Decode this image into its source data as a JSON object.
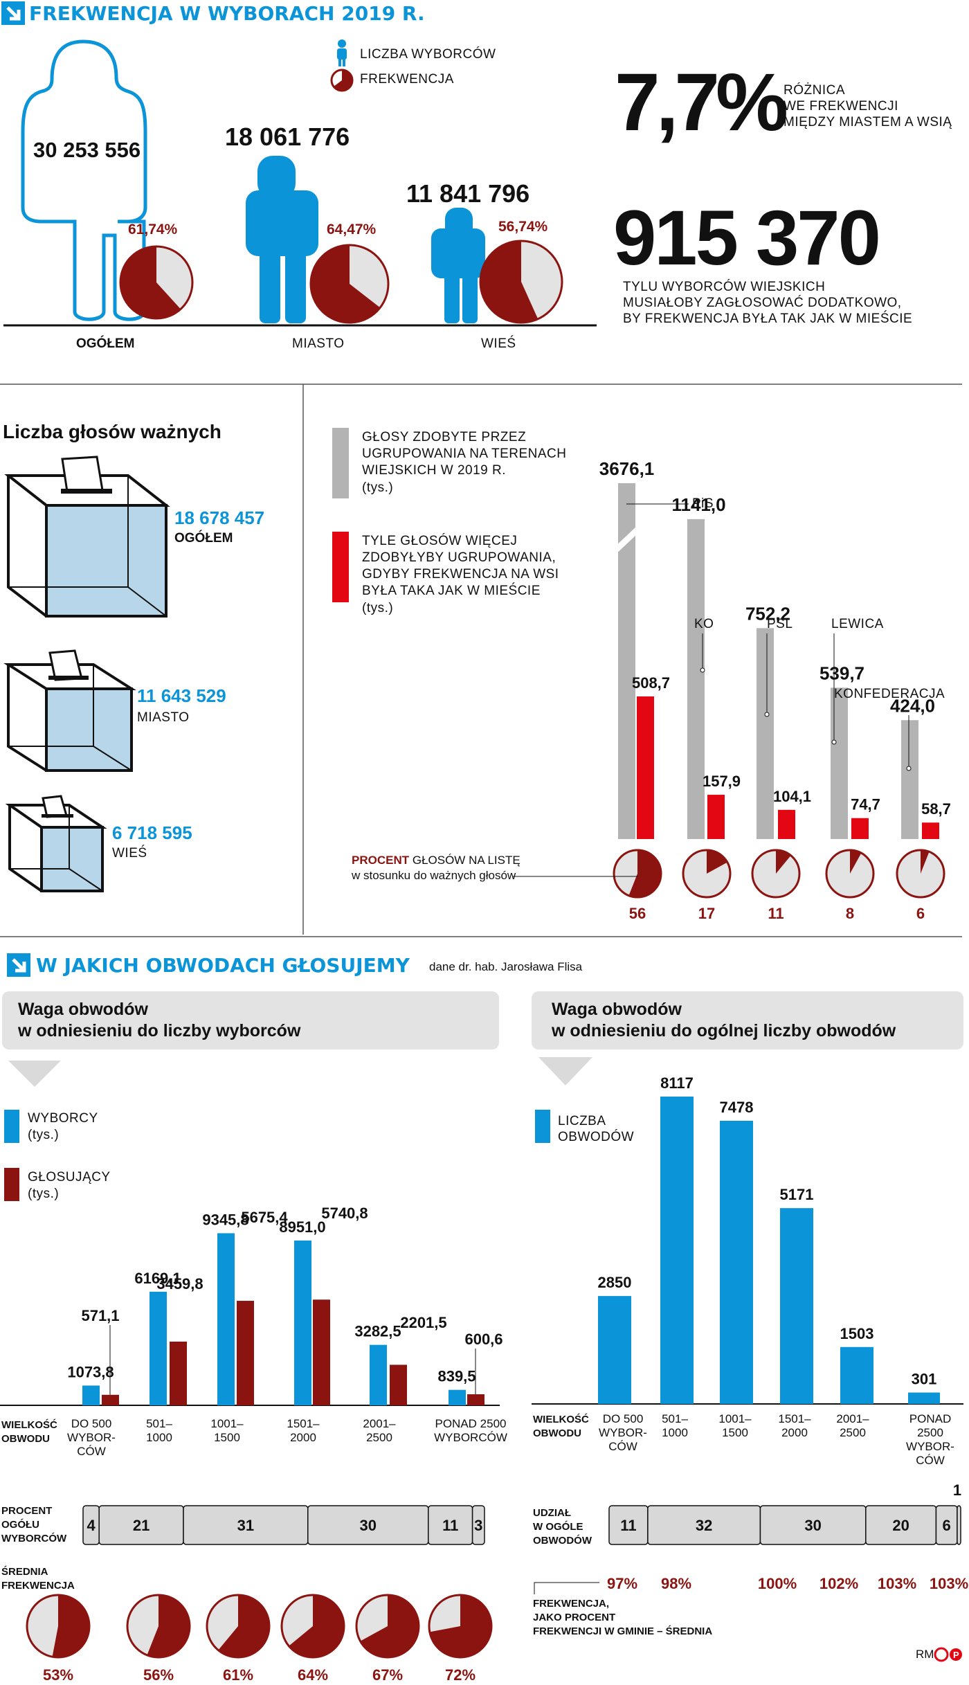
{
  "colors": {
    "blue": "#0b95d8",
    "dark_red": "#8b1410",
    "bright_red": "#e30613",
    "gray": "#b3b3b3",
    "pie_bg": "#e3e3e3",
    "seg_gray": "#d8d8d8"
  },
  "icons": {
    "section_arrow": "arrow-down-right-icon",
    "person": "person-icon",
    "ballot_box": "ballot-box-icon"
  },
  "header": {
    "title": "FREKWENCJA W WYBORACH 2019 R."
  },
  "legend_top": {
    "voters": "LICZBA WYBORCÓW",
    "turnout": "FREKWENCJA"
  },
  "turnout": {
    "groups": [
      {
        "name": "OGÓŁEM",
        "voters": "30 253 556",
        "turnout_label": "61,74%",
        "turnout": 61.74
      },
      {
        "name": "MIASTO",
        "voters": "18 061 776",
        "turnout_label": "64,47%",
        "turnout": 64.47
      },
      {
        "name": "WIEŚ",
        "voters": "11 841 796",
        "turnout_label": "56,74%",
        "turnout": 56.74
      }
    ]
  },
  "stats": {
    "difference_value": "7,7%",
    "difference_desc": [
      "RÓŻNICA",
      "WE FREKWENCJI",
      "MIĘDZY MIASTEM A WSIĄ"
    ],
    "extra_voters": "915 370",
    "extra_desc": [
      "TYLU WYBORCÓW WIEJSKICH",
      "MUSIAŁOBY ZAGŁOSOWAĆ DODATKOWO,",
      "BY FREKWENCJA BYŁA TAK JAK W MIEŚCIE"
    ]
  },
  "valid_votes": {
    "title": "Liczba głosów ważnych",
    "items": [
      {
        "value": "18 678 457",
        "label": "OGÓŁEM"
      },
      {
        "value": "11 643 529",
        "label": "MIASTO"
      },
      {
        "value": "6 718 595",
        "label": "WIEŚ"
      }
    ]
  },
  "parties_legend": {
    "gray": [
      "GŁOSY ZDOBYTE PRZEZ",
      "UGRUPOWANIA NA TERENACH",
      "WIEJSKICH W 2019 R.",
      "(tys.)"
    ],
    "red": [
      "TYLE GŁOSÓW WIĘCEJ",
      "ZDOBYŁYBY UGRUPOWANIA,",
      "GDYBY FREKWENCJA NA WSI",
      "BYŁA TAKA JAK W MIEŚCIE",
      "(tys.)"
    ],
    "pie_label_bold": "PROCENT",
    "pie_label_rest": " GŁOSÓW NA LISTĘ",
    "pie_label_line2": "w stosunku do ważnych głosów"
  },
  "chart_data": [
    {
      "type": "bar",
      "title": "",
      "categories": [
        "PiS",
        "KO",
        "PSL",
        "LEWICA",
        "KONFEDERACJA"
      ],
      "series": [
        {
          "name": "GŁOSY ZDOBYTE PRZEZ UGRUPOWANIA NA TERENACH WIEJSKICH W 2019 R. (tys.)",
          "values": [
            3676.1,
            1141.0,
            752.2,
            539.7,
            424.0
          ],
          "labels": [
            "3676,1",
            "1141,0",
            "752,2",
            "539,7",
            "424,0"
          ]
        },
        {
          "name": "TYLE GŁOSÓW WIĘCEJ ZDOBYŁYBY UGRUPOWANIA, GDYBY FREKWENCJA NA WSI BYŁA TAKA JAK W MIEŚCIE (tys.)",
          "values": [
            508.7,
            157.9,
            104.1,
            74.7,
            58.7
          ],
          "labels": [
            "508,7",
            "157,9",
            "104,1",
            "74,7",
            "58,7"
          ]
        }
      ],
      "pie_percent": [
        56,
        17,
        11,
        8,
        6
      ],
      "axis_break": true
    },
    {
      "type": "bar",
      "title": "Waga obwodów w odniesieniu do liczby wyborców",
      "categories": [
        "DO 500 WYBORCÓW",
        "501–1000",
        "1001–1500",
        "1501–2000",
        "2001–2500",
        "PONAD 2500 WYBORCÓW"
      ],
      "category_lines": [
        [
          "DO 500",
          "WYBOR-",
          "CÓW"
        ],
        [
          "501–",
          "1000"
        ],
        [
          "1001–",
          "1500"
        ],
        [
          "1501–",
          "2000"
        ],
        [
          "2001–",
          "2500"
        ],
        [
          "PONAD 2500",
          "WYBORCÓW"
        ]
      ],
      "series": [
        {
          "name": "WYBORCY (tys.)",
          "values": [
            1073.8,
            6169.1,
            9345.8,
            8951.0,
            3282.5,
            839.5
          ],
          "labels": [
            "1073,8",
            "6169,1",
            "9345,8",
            "8951,0",
            "3282,5",
            "839,5"
          ]
        },
        {
          "name": "GŁOSUJĄCY (tys.)",
          "values": [
            571.1,
            3459.8,
            5675.4,
            5740.8,
            2201.5,
            600.6
          ],
          "labels": [
            "571,1",
            "3459,8",
            "5675,4",
            "5740,8",
            "2201,5",
            "600,6"
          ]
        }
      ],
      "share_percent": [
        4,
        21,
        31,
        30,
        11,
        3
      ],
      "avg_turnout": [
        53,
        56,
        61,
        64,
        67,
        72
      ]
    },
    {
      "type": "bar",
      "title": "Waga obwodów w odniesieniu do ogólnej liczby obwodów",
      "categories": [
        "DO 500 WYBORCÓW",
        "501–1000",
        "1001–1500",
        "1501–2000",
        "2001–2500",
        "PONAD 2500 WYBORCÓW"
      ],
      "category_lines": [
        [
          "DO 500",
          "WYBOR-",
          "CÓW"
        ],
        [
          "501–",
          "1000"
        ],
        [
          "1001–",
          "1500"
        ],
        [
          "1501–",
          "2000"
        ],
        [
          "2001–",
          "2500"
        ],
        [
          "PONAD",
          "2500",
          "WYBOR-",
          "CÓW"
        ]
      ],
      "series": [
        {
          "name": "LICZBA OBWODÓW",
          "values": [
            2850,
            8117,
            7478,
            5171,
            1503,
            301
          ]
        }
      ],
      "share_percent": [
        11,
        32,
        30,
        20,
        6,
        1
      ],
      "relative_turnout": [
        97,
        98,
        100,
        102,
        103,
        103
      ]
    }
  ],
  "section2": {
    "title": "W JAKICH OBWODACH GŁOSUJEMY",
    "source": "dane dr. hab. Jarosława Flisa"
  },
  "left_panel": {
    "title_lines": [
      "Waga obwodów",
      "w odniesieniu do liczby wyborców"
    ],
    "legend_voters": [
      "WYBORCY",
      "(tys.)"
    ],
    "legend_voting": [
      "GŁOSUJĄCY",
      "(tys.)"
    ],
    "row_size": [
      "WIELKOŚĆ",
      "OBWODU"
    ],
    "row_share": [
      "PROCENT",
      "OGÓŁU",
      "WYBORCÓW"
    ],
    "row_turnout": [
      "ŚREDNIA",
      "FREKWENCJA"
    ]
  },
  "right_panel": {
    "title_lines": [
      "Waga obwodów",
      "w odniesieniu do ogólnej liczby obwodów"
    ],
    "legend": [
      "LICZBA",
      "OBWODÓW"
    ],
    "row_size": [
      "WIELKOŚĆ",
      "OBWODU"
    ],
    "row_share": [
      "UDZIAŁ",
      "W OGÓLE",
      "OBWODÓW"
    ],
    "footnote": [
      "FREKWENCJA,",
      "JAKO PROCENT",
      "FREKWENCJI W GMINIE – ŚREDNIA"
    ]
  },
  "credit": {
    "author": "RM",
    "logo": "©P"
  }
}
